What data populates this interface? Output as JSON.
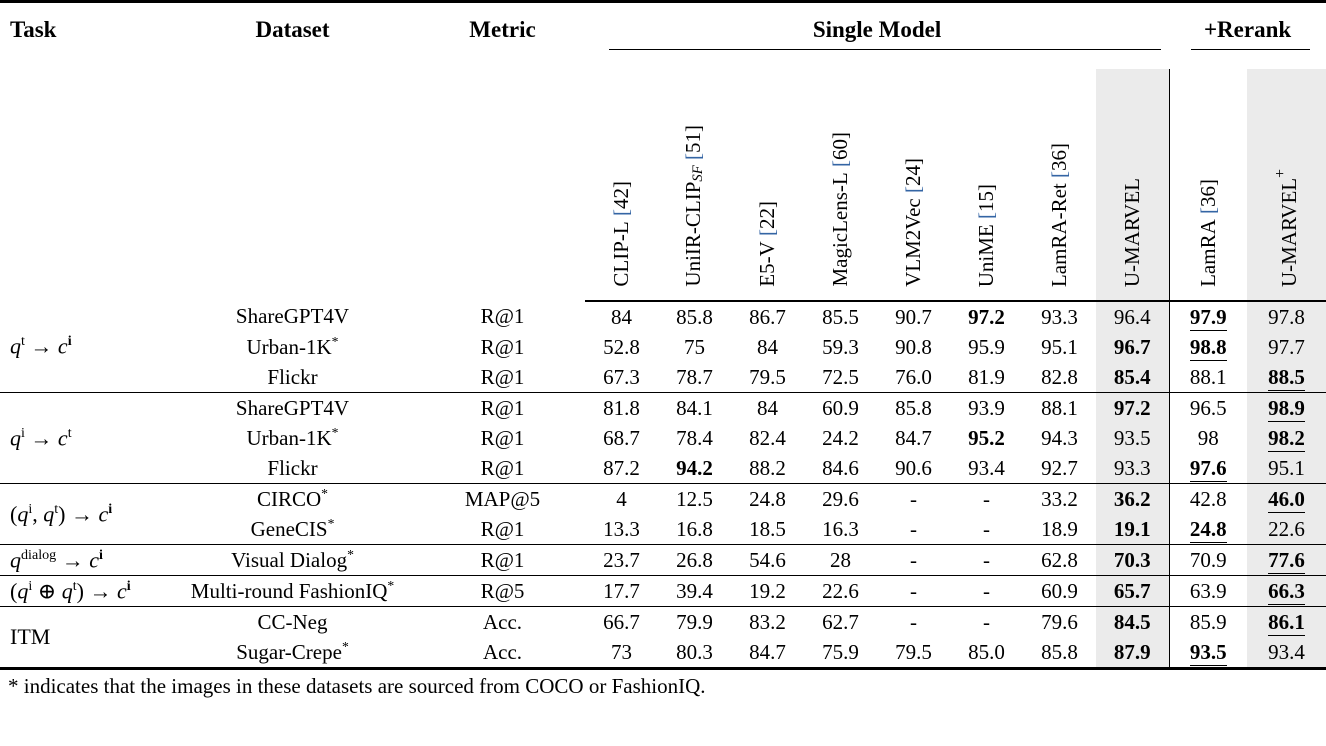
{
  "header": {
    "task": "Task",
    "dataset": "Dataset",
    "metric": "Metric",
    "group_single": "Single Model",
    "group_rerank": "+Rerank",
    "model_columns": [
      {
        "name": "CLIP-L",
        "cite": "42"
      },
      {
        "name": "UniIR-CLIP",
        "sub": "SF",
        "cite": "51"
      },
      {
        "name": "E5-V",
        "cite": "22"
      },
      {
        "name": "MagicLens-L",
        "cite": "60"
      },
      {
        "name": "VLM2Vec",
        "cite": "24"
      },
      {
        "name": "UniME",
        "cite": "15"
      },
      {
        "name": "LamRA-Ret",
        "cite": "36"
      },
      {
        "name": "U-MARVEL",
        "shaded": true
      }
    ],
    "rerank_columns": [
      {
        "name": "LamRA",
        "cite": "36"
      },
      {
        "name": "U-MARVEL",
        "sup": "+",
        "shaded": true
      }
    ]
  },
  "blocks": [
    {
      "task_segments": [
        {
          "t": "q",
          "it": true
        },
        {
          "t": "t",
          "sup": true
        },
        {
          "t": " → "
        },
        {
          "t": "c",
          "it": true
        },
        {
          "t": "i",
          "sup": true,
          "b": true
        }
      ],
      "rows": [
        {
          "dataset": "ShareGPT4V",
          "star": false,
          "metric": "R@1",
          "values": [
            "84",
            "85.8",
            "86.7",
            "85.5",
            "90.7",
            {
              "v": "97.2",
              "bold": true
            },
            "93.3",
            "96.4",
            {
              "v": "97.9",
              "bold": true,
              "ul": true
            },
            "97.8"
          ]
        },
        {
          "dataset": "Urban-1K",
          "star": true,
          "metric": "R@1",
          "values": [
            "52.8",
            "75",
            "84",
            "59.3",
            "90.8",
            "95.9",
            "95.1",
            {
              "v": "96.7",
              "bold": true
            },
            {
              "v": "98.8",
              "bold": true,
              "ul": true
            },
            "97.7"
          ]
        },
        {
          "dataset": "Flickr",
          "star": false,
          "metric": "R@1",
          "values": [
            "67.3",
            "78.7",
            "79.5",
            "72.5",
            "76.0",
            "81.9",
            "82.8",
            {
              "v": "85.4",
              "bold": true
            },
            "88.1",
            {
              "v": "88.5",
              "bold": true,
              "ul": true
            }
          ]
        }
      ]
    },
    {
      "task_segments": [
        {
          "t": "q",
          "it": true
        },
        {
          "t": "i",
          "sup": true
        },
        {
          "t": " → "
        },
        {
          "t": "c",
          "it": true
        },
        {
          "t": "t",
          "sup": true
        }
      ],
      "rows": [
        {
          "dataset": "ShareGPT4V",
          "star": false,
          "metric": "R@1",
          "values": [
            "81.8",
            "84.1",
            "84",
            "60.9",
            "85.8",
            "93.9",
            "88.1",
            {
              "v": "97.2",
              "bold": true
            },
            "96.5",
            {
              "v": "98.9",
              "bold": true,
              "ul": true
            }
          ]
        },
        {
          "dataset": "Urban-1K",
          "star": true,
          "metric": "R@1",
          "values": [
            "68.7",
            "78.4",
            "82.4",
            "24.2",
            "84.7",
            {
              "v": "95.2",
              "bold": true
            },
            "94.3",
            "93.5",
            "98",
            {
              "v": "98.2",
              "bold": true,
              "ul": true
            }
          ]
        },
        {
          "dataset": "Flickr",
          "star": false,
          "metric": "R@1",
          "values": [
            "87.2",
            {
              "v": "94.2",
              "bold": true
            },
            "88.2",
            "84.6",
            "90.6",
            "93.4",
            "92.7",
            "93.3",
            {
              "v": "97.6",
              "bold": true,
              "ul": true
            },
            "95.1"
          ]
        }
      ]
    },
    {
      "task_segments": [
        {
          "t": "("
        },
        {
          "t": "q",
          "it": true
        },
        {
          "t": "i",
          "sup": true
        },
        {
          "t": ", "
        },
        {
          "t": "q",
          "it": true
        },
        {
          "t": "t",
          "sup": true
        },
        {
          "t": ")"
        },
        {
          "t": " → "
        },
        {
          "t": "c",
          "it": true
        },
        {
          "t": "i",
          "sup": true,
          "b": true
        }
      ],
      "rows": [
        {
          "dataset": "CIRCO",
          "star": true,
          "metric": "MAP@5",
          "values": [
            "4",
            "12.5",
            "24.8",
            "29.6",
            "-",
            "-",
            "33.2",
            {
              "v": "36.2",
              "bold": true
            },
            "42.8",
            {
              "v": "46.0",
              "bold": true,
              "ul": true
            }
          ]
        },
        {
          "dataset": "GeneCIS",
          "star": true,
          "metric": "R@1",
          "values": [
            "13.3",
            "16.8",
            "18.5",
            "16.3",
            "-",
            "-",
            "18.9",
            {
              "v": "19.1",
              "bold": true
            },
            {
              "v": "24.8",
              "bold": true,
              "ul": true
            },
            "22.6"
          ]
        }
      ]
    },
    {
      "task_segments": [
        {
          "t": "q",
          "it": true
        },
        {
          "t": "dialog",
          "sup": true
        },
        {
          "t": " → "
        },
        {
          "t": "c",
          "it": true
        },
        {
          "t": "i",
          "sup": true,
          "b": true
        }
      ],
      "rows": [
        {
          "dataset": "Visual Dialog",
          "star": true,
          "metric": "R@1",
          "values": [
            "23.7",
            "26.8",
            "54.6",
            "28",
            "-",
            "-",
            "62.8",
            {
              "v": "70.3",
              "bold": true
            },
            "70.9",
            {
              "v": "77.6",
              "bold": true,
              "ul": true
            }
          ]
        }
      ]
    },
    {
      "task_segments": [
        {
          "t": "("
        },
        {
          "t": "q",
          "it": true
        },
        {
          "t": "i",
          "sup": true
        },
        {
          "t": " ⊕ "
        },
        {
          "t": "q",
          "it": true
        },
        {
          "t": "t",
          "sup": true
        },
        {
          "t": ")"
        },
        {
          "t": " → "
        },
        {
          "t": "c",
          "it": true
        },
        {
          "t": "i",
          "sup": true,
          "b": true
        }
      ],
      "rows": [
        {
          "dataset": "Multi-round FashionIQ",
          "star": true,
          "metric": "R@5",
          "values": [
            "17.7",
            "39.4",
            "19.2",
            "22.6",
            "-",
            "-",
            "60.9",
            {
              "v": "65.7",
              "bold": true
            },
            "63.9",
            {
              "v": "66.3",
              "bold": true,
              "ul": true
            }
          ]
        }
      ]
    },
    {
      "task_segments": [
        {
          "t": "ITM"
        }
      ],
      "rows": [
        {
          "dataset": "CC-Neg",
          "star": false,
          "metric": "Acc.",
          "values": [
            "66.7",
            "79.9",
            "83.2",
            "62.7",
            "-",
            "-",
            "79.6",
            {
              "v": "84.5",
              "bold": true
            },
            "85.9",
            {
              "v": "86.1",
              "bold": true,
              "ul": true
            }
          ]
        },
        {
          "dataset": "Sugar-Crepe",
          "star": true,
          "metric": "Acc.",
          "values": [
            "73",
            "80.3",
            "84.7",
            "75.9",
            "79.5",
            "85.0",
            "85.8",
            {
              "v": "87.9",
              "bold": true
            },
            {
              "v": "93.5",
              "bold": true,
              "ul": true
            },
            "93.4"
          ]
        }
      ]
    }
  ],
  "footnote": "* indicates that the images in these datasets are sourced from COCO or FashionIQ.",
  "colors": {
    "citation_bracket_blue": "#3465a4",
    "highlight_column_gray": "#ebebeb"
  }
}
